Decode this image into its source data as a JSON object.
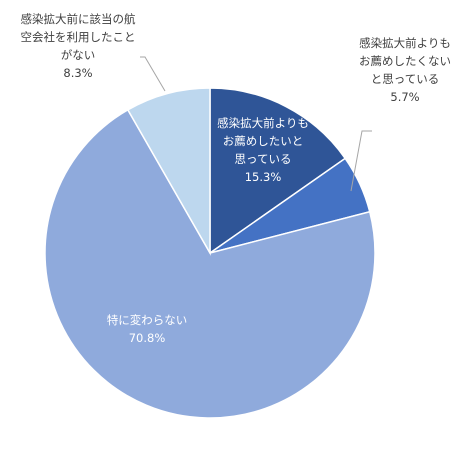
{
  "chart_data": {
    "type": "pie",
    "title": "",
    "slices": [
      {
        "label_lines": [
          "感染拡大前よりも",
          "お薦めしたいと",
          "思っている"
        ],
        "value": 15.3,
        "value_label": "15.3%",
        "color": "#2F5597"
      },
      {
        "label_lines": [
          "感染拡大前よりも",
          "お薦めしたくない",
          "と思っている"
        ],
        "value": 5.7,
        "value_label": "5.7%",
        "color": "#4472C4"
      },
      {
        "label_lines": [
          "特に変わらない"
        ],
        "value": 70.8,
        "value_label": "70.8%",
        "color": "#8FAADC"
      },
      {
        "label_lines": [
          "感染拡大前に該当の航",
          "空会社を利用したこと",
          "がない"
        ],
        "value": 8.3,
        "value_label": "8.3%",
        "color": "#BDD7EE"
      }
    ],
    "start_angle_deg": 0,
    "direction": "clockwise",
    "legend": "none",
    "slice_border_color": "#ffffff",
    "inside_label_color": "#ffffff",
    "outside_label_color": "#404040",
    "leader_line_color": "#a6a6a6"
  }
}
